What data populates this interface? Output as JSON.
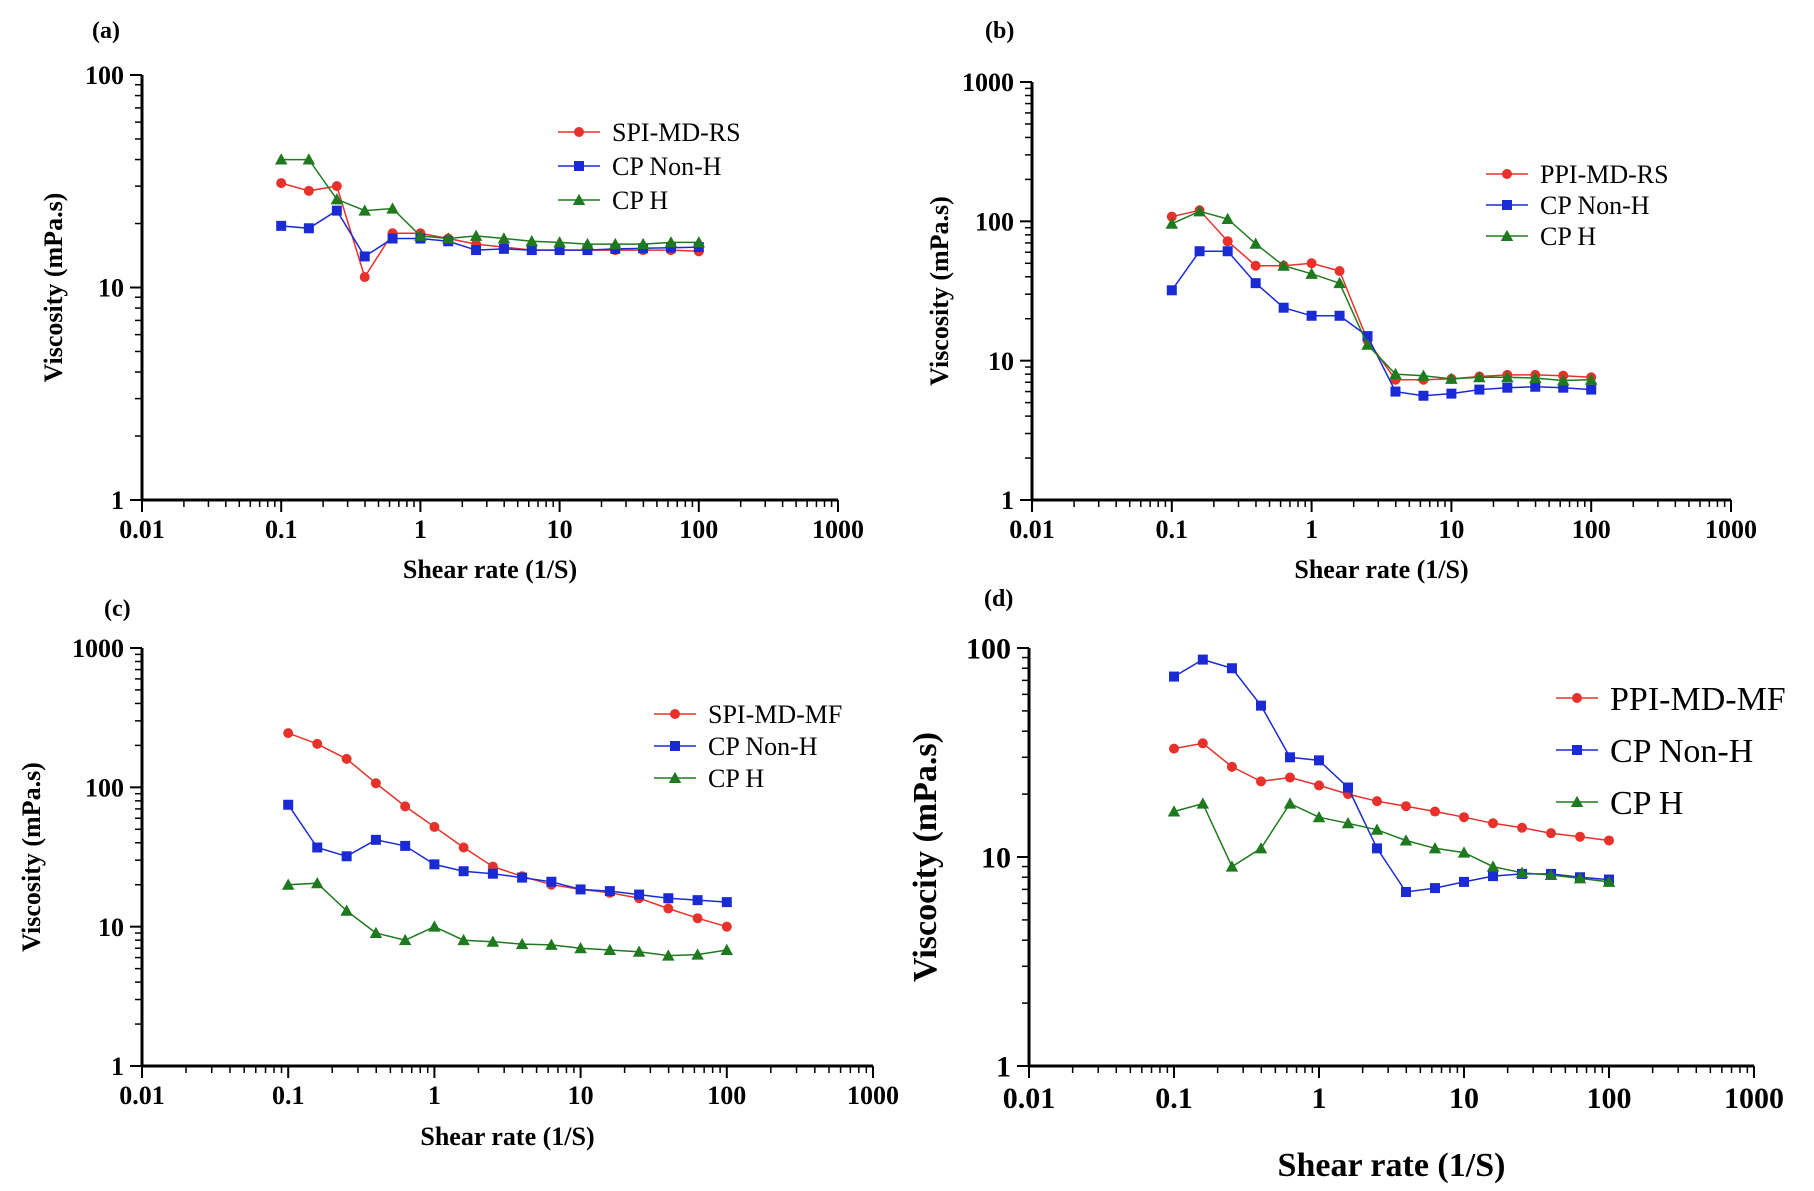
{
  "figure": {
    "layout": "2x2 grid of log-log line charts"
  },
  "chart_data": [
    {
      "panel": "(a)",
      "type": "line",
      "xscale": "log",
      "yscale": "log",
      "xlabel": "Shear rate (1/S)",
      "ylabel": "Viscosity (mPa.s)",
      "xlim": [
        0.01,
        1000
      ],
      "ylim": [
        1,
        100
      ],
      "xticks": [
        0.01,
        0.1,
        1,
        10,
        100,
        1000
      ],
      "xtick_labels": [
        "0.01",
        "0.1",
        "1",
        "10",
        "100",
        "1000"
      ],
      "yticks": [
        1,
        10,
        100
      ],
      "ytick_labels": [
        "1",
        "10",
        "100"
      ],
      "legend_position": "top-right",
      "x": [
        0.1,
        0.158,
        0.251,
        0.398,
        0.631,
        1,
        1.585,
        2.512,
        3.981,
        6.31,
        10,
        15.85,
        25.12,
        39.81,
        63.1,
        100
      ],
      "series": [
        {
          "name": "SPI-MD-RS",
          "color": "#e8312b",
          "marker": "circle",
          "values": [
            31,
            28.5,
            30,
            11.2,
            18,
            18,
            17,
            16,
            15.5,
            15,
            15,
            15,
            15,
            15,
            15,
            14.8
          ]
        },
        {
          "name": "CP Non-H",
          "color": "#1a2bd6",
          "marker": "square",
          "values": [
            19.5,
            19,
            23,
            14,
            17,
            17,
            16.5,
            15,
            15.2,
            15,
            15,
            15,
            15.2,
            15.3,
            15.4,
            15.5
          ]
        },
        {
          "name": "CP H",
          "color": "#1f7a1f",
          "marker": "triangle",
          "values": [
            40,
            40,
            26,
            23,
            23.5,
            17.5,
            17,
            17.5,
            17,
            16.5,
            16.3,
            16,
            16,
            16,
            16.3,
            16.3
          ]
        }
      ]
    },
    {
      "panel": "(b)",
      "type": "line",
      "xscale": "log",
      "yscale": "log",
      "xlabel": "Shear rate (1/S)",
      "ylabel": "Viscosity (mPa.s)",
      "xlim": [
        0.01,
        1000
      ],
      "ylim": [
        1,
        1000
      ],
      "xticks": [
        0.01,
        0.1,
        1,
        10,
        100,
        1000
      ],
      "xtick_labels": [
        "0.01",
        "0.1",
        "1",
        "10",
        "100",
        "1000"
      ],
      "yticks": [
        1,
        10,
        100,
        1000
      ],
      "ytick_labels": [
        "1",
        "10",
        "100",
        "1000"
      ],
      "legend_position": "top-right",
      "x": [
        0.1,
        0.158,
        0.251,
        0.398,
        0.631,
        1,
        1.585,
        2.512,
        3.981,
        6.31,
        10,
        15.85,
        25.12,
        39.81,
        63.1,
        100
      ],
      "series": [
        {
          "name": "PPI-MD-RS",
          "color": "#e8312b",
          "marker": "circle",
          "values": [
            108,
            120,
            72,
            48,
            48,
            50,
            44,
            14,
            7.3,
            7.3,
            7.4,
            7.7,
            7.9,
            7.9,
            7.8,
            7.6
          ]
        },
        {
          "name": "CP Non-H",
          "color": "#1a2bd6",
          "marker": "square",
          "values": [
            32,
            61,
            61,
            36,
            24,
            21,
            21,
            15,
            6,
            5.6,
            5.8,
            6.2,
            6.4,
            6.5,
            6.4,
            6.2
          ]
        },
        {
          "name": "CP H",
          "color": "#1f7a1f",
          "marker": "triangle",
          "values": [
            96,
            118,
            104,
            69,
            48,
            42,
            36,
            13,
            8,
            7.8,
            7.4,
            7.6,
            7.6,
            7.5,
            7.2,
            7.3
          ]
        }
      ]
    },
    {
      "panel": "(c)",
      "type": "line",
      "xscale": "log",
      "yscale": "log",
      "xlabel": "Shear rate (1/S)",
      "ylabel": "Viscosity (mPa.s)",
      "xlim": [
        0.01,
        1000
      ],
      "ylim": [
        1,
        1000
      ],
      "xticks": [
        0.01,
        0.1,
        1,
        10,
        100,
        1000
      ],
      "xtick_labels": [
        "0.01",
        "0.1",
        "1",
        "10",
        "100",
        "1000"
      ],
      "yticks": [
        1,
        10,
        100,
        1000
      ],
      "ytick_labels": [
        "1",
        "10",
        "100",
        "1000"
      ],
      "legend_position": "top-right",
      "x": [
        0.1,
        0.158,
        0.251,
        0.398,
        0.631,
        1,
        1.585,
        2.512,
        3.981,
        6.31,
        10,
        15.85,
        25.12,
        39.81,
        63.1,
        100
      ],
      "series": [
        {
          "name": "SPI-MD-MF",
          "color": "#e8312b",
          "marker": "circle",
          "values": [
            245,
            205,
            160,
            107,
            73,
            52,
            37,
            27,
            23,
            20,
            18.5,
            17.5,
            16,
            13.5,
            11.5,
            10
          ]
        },
        {
          "name": "CP Non-H",
          "color": "#1a2bd6",
          "marker": "square",
          "values": [
            75,
            37,
            32,
            42,
            38,
            28,
            25,
            24,
            22.5,
            21,
            18.5,
            18,
            17,
            16,
            15.5,
            15
          ]
        },
        {
          "name": "CP H",
          "color": "#1f7a1f",
          "marker": "triangle",
          "values": [
            20,
            20.5,
            13,
            9,
            8,
            10,
            8,
            7.8,
            7.5,
            7.4,
            7,
            6.8,
            6.6,
            6.2,
            6.3,
            6.8
          ]
        }
      ]
    },
    {
      "panel": "(d)",
      "type": "line",
      "xscale": "log",
      "yscale": "log",
      "xlabel": "Shear rate (1/S)",
      "ylabel": "Viscocity (mPa.s)",
      "xlim": [
        0.01,
        1000
      ],
      "ylim": [
        1,
        100
      ],
      "xticks": [
        0.01,
        0.1,
        1,
        10,
        100,
        1000
      ],
      "xtick_labels": [
        "0.01",
        "0.1",
        "1",
        "10",
        "100",
        "1000"
      ],
      "yticks": [
        1,
        10,
        100
      ],
      "ytick_labels": [
        "1",
        "10",
        "100"
      ],
      "legend_position": "top-right",
      "x": [
        0.1,
        0.158,
        0.251,
        0.398,
        0.631,
        1,
        1.585,
        2.512,
        3.981,
        6.31,
        10,
        15.85,
        25.12,
        39.81,
        63.1,
        100
      ],
      "series": [
        {
          "name": "PPI-MD-MF",
          "color": "#e8312b",
          "marker": "circle",
          "values": [
            33,
            35,
            27,
            23,
            24,
            22,
            20,
            18.5,
            17.5,
            16.5,
            15.5,
            14.5,
            13.8,
            13,
            12.5,
            12
          ]
        },
        {
          "name": "CP Non-H",
          "color": "#1a2bd6",
          "marker": "square",
          "values": [
            73,
            88,
            80,
            53,
            30,
            29,
            21.5,
            11,
            6.8,
            7.1,
            7.6,
            8.1,
            8.3,
            8.3,
            8,
            7.8
          ]
        },
        {
          "name": "CP H",
          "color": "#1f7a1f",
          "marker": "triangle",
          "values": [
            16.5,
            18,
            9,
            11,
            18,
            15.5,
            14.5,
            13.5,
            12,
            11,
            10.5,
            9,
            8.4,
            8.2,
            7.9,
            7.6
          ]
        }
      ]
    }
  ]
}
